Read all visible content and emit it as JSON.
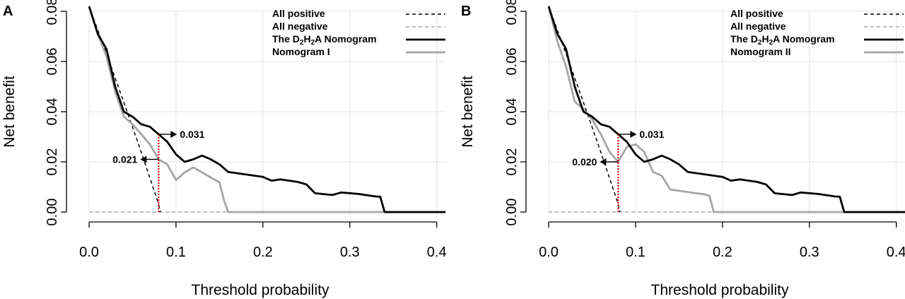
{
  "chart_data": [
    {
      "panel": "A",
      "type": "line",
      "xlabel": "Threshold probability",
      "ylabel": "Net benefit",
      "xlim": [
        0,
        0.41
      ],
      "ylim": [
        0,
        0.08
      ],
      "xticks": [
        "0.0",
        "0.1",
        "0.2",
        "0.3",
        "0.4"
      ],
      "yticks": [
        "0.00",
        "0.02",
        "0.04",
        "0.06",
        "0.08"
      ],
      "grid": true,
      "legend_position": "top-right",
      "legend": [
        {
          "pre": "All positive",
          "sub1": "",
          "mid": "",
          "sub2": "",
          "post": ""
        },
        {
          "pre": "All negative",
          "sub1": "",
          "mid": "",
          "sub2": "",
          "post": ""
        },
        {
          "pre": "The D",
          "sub1": "2",
          "mid": "H",
          "sub2": "2",
          "post": "A Nomogram"
        },
        {
          "pre": "Nomogram I",
          "sub1": "",
          "mid": "",
          "sub2": "",
          "post": ""
        }
      ],
      "series": [
        {
          "key": "all_positive",
          "color": "#000000",
          "dash": true,
          "width": 1.5,
          "x": [
            0.0,
            0.01,
            0.02,
            0.03,
            0.04,
            0.05,
            0.06,
            0.07,
            0.08,
            0.082
          ],
          "y": [
            0.082,
            0.0725,
            0.0631,
            0.0534,
            0.0437,
            0.0338,
            0.0238,
            0.0136,
            0.0033,
            0.0
          ]
        },
        {
          "key": "all_negative",
          "color": "#a9a9a9",
          "dash": true,
          "width": 1.5,
          "x": [
            0.0,
            0.41
          ],
          "y": [
            0.0,
            0.0
          ]
        },
        {
          "key": "d2h2a_nomogram",
          "color": "#000000",
          "dash": false,
          "width": 2.8,
          "x": [
            0.0,
            0.01,
            0.02,
            0.03,
            0.04,
            0.05,
            0.06,
            0.07,
            0.08,
            0.09,
            0.1,
            0.11,
            0.12,
            0.13,
            0.14,
            0.15,
            0.16,
            0.18,
            0.2,
            0.21,
            0.22,
            0.24,
            0.25,
            0.26,
            0.28,
            0.29,
            0.31,
            0.33,
            0.335,
            0.34,
            0.41
          ],
          "y": [
            0.082,
            0.071,
            0.065,
            0.05,
            0.04,
            0.038,
            0.035,
            0.034,
            0.031,
            0.028,
            0.023,
            0.02,
            0.021,
            0.0225,
            0.021,
            0.019,
            0.016,
            0.015,
            0.014,
            0.0125,
            0.013,
            0.012,
            0.011,
            0.0075,
            0.0068,
            0.0078,
            0.0072,
            0.0062,
            0.0061,
            0.0,
            0.0
          ]
        },
        {
          "key": "nomogram_i",
          "color": "#a6a6a6",
          "dash": false,
          "width": 2.8,
          "x": [
            0.0,
            0.01,
            0.02,
            0.03,
            0.04,
            0.05,
            0.06,
            0.07,
            0.08,
            0.09,
            0.1,
            0.11,
            0.12,
            0.13,
            0.14,
            0.15,
            0.155,
            0.16,
            0.41
          ],
          "y": [
            0.082,
            0.071,
            0.062,
            0.048,
            0.038,
            0.035,
            0.031,
            0.027,
            0.021,
            0.019,
            0.0128,
            0.0158,
            0.0178,
            0.0158,
            0.0138,
            0.0118,
            0.005,
            0.0,
            0.0
          ]
        }
      ],
      "annotations": {
        "threshold_x": 0.08,
        "upper": {
          "text": "0.031",
          "y": 0.031,
          "direction": "right"
        },
        "lower": {
          "text": "0.021",
          "y": 0.021,
          "direction": "left"
        }
      }
    },
    {
      "panel": "B",
      "type": "line",
      "xlabel": "Threshold probability",
      "ylabel": "Net benefit",
      "xlim": [
        0,
        0.41
      ],
      "ylim": [
        0,
        0.08
      ],
      "xticks": [
        "0.0",
        "0.1",
        "0.2",
        "0.3",
        "0.4"
      ],
      "yticks": [
        "0.00",
        "0.02",
        "0.04",
        "0.06",
        "0.08"
      ],
      "grid": true,
      "legend_position": "top-right",
      "legend": [
        {
          "pre": "All positive",
          "sub1": "",
          "mid": "",
          "sub2": "",
          "post": ""
        },
        {
          "pre": "All negative",
          "sub1": "",
          "mid": "",
          "sub2": "",
          "post": ""
        },
        {
          "pre": "The D",
          "sub1": "2",
          "mid": "H",
          "sub2": "2",
          "post": "A Nomogram"
        },
        {
          "pre": "Nomogram II",
          "sub1": "",
          "mid": "",
          "sub2": "",
          "post": ""
        }
      ],
      "series": [
        {
          "key": "all_positive",
          "color": "#000000",
          "dash": true,
          "width": 1.5,
          "x": [
            0.0,
            0.01,
            0.02,
            0.03,
            0.04,
            0.05,
            0.06,
            0.07,
            0.08,
            0.082
          ],
          "y": [
            0.082,
            0.0725,
            0.0631,
            0.0534,
            0.0437,
            0.0338,
            0.0238,
            0.0136,
            0.0033,
            0.0
          ]
        },
        {
          "key": "all_negative",
          "color": "#a9a9a9",
          "dash": true,
          "width": 1.5,
          "x": [
            0.0,
            0.41
          ],
          "y": [
            0.0,
            0.0
          ]
        },
        {
          "key": "d2h2a_nomogram",
          "color": "#000000",
          "dash": false,
          "width": 2.8,
          "x": [
            0.0,
            0.01,
            0.02,
            0.03,
            0.04,
            0.05,
            0.06,
            0.07,
            0.08,
            0.09,
            0.1,
            0.11,
            0.12,
            0.13,
            0.14,
            0.15,
            0.16,
            0.18,
            0.2,
            0.21,
            0.22,
            0.24,
            0.25,
            0.26,
            0.28,
            0.29,
            0.31,
            0.33,
            0.335,
            0.34,
            0.41
          ],
          "y": [
            0.082,
            0.071,
            0.065,
            0.05,
            0.04,
            0.038,
            0.035,
            0.034,
            0.031,
            0.028,
            0.023,
            0.02,
            0.021,
            0.0225,
            0.021,
            0.019,
            0.016,
            0.015,
            0.014,
            0.0125,
            0.013,
            0.012,
            0.011,
            0.0075,
            0.0068,
            0.0078,
            0.0072,
            0.0062,
            0.0061,
            0.0,
            0.0
          ]
        },
        {
          "key": "nomogram_ii",
          "color": "#a6a6a6",
          "dash": false,
          "width": 2.8,
          "x": [
            0.0,
            0.01,
            0.02,
            0.03,
            0.04,
            0.05,
            0.06,
            0.07,
            0.08,
            0.09,
            0.1,
            0.11,
            0.12,
            0.13,
            0.14,
            0.16,
            0.18,
            0.185,
            0.19,
            0.41
          ],
          "y": [
            0.082,
            0.068,
            0.058,
            0.044,
            0.041,
            0.037,
            0.031,
            0.024,
            0.02,
            0.026,
            0.027,
            0.024,
            0.016,
            0.0145,
            0.009,
            0.008,
            0.007,
            0.0065,
            0.0,
            0.0
          ]
        }
      ],
      "annotations": {
        "threshold_x": 0.08,
        "upper": {
          "text": "0.031",
          "y": 0.031,
          "direction": "right"
        },
        "lower": {
          "text": "0.020",
          "y": 0.02,
          "direction": "left"
        }
      }
    }
  ]
}
